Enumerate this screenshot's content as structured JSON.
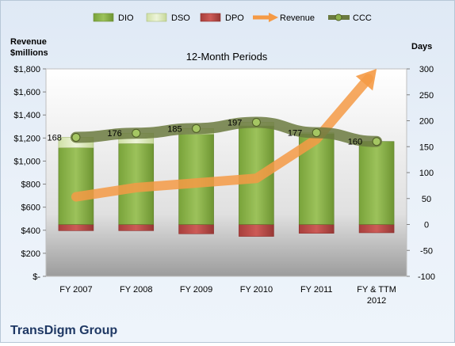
{
  "chart_data": {
    "type": "bar",
    "title": "12-Month Periods",
    "footer": "TransDigm Group",
    "categories": [
      "FY 2007",
      "FY 2008",
      "FY 2009",
      "FY 2010",
      "FY 2011",
      "FY & TTM 2012"
    ],
    "left_axis": {
      "label_line1": "Revenue",
      "label_line2": "$millions",
      "range": [
        0,
        1800
      ],
      "ticks": [
        "$-",
        "$200",
        "$400",
        "$600",
        "$800",
        "$1,000",
        "$1,200",
        "$1,400",
        "$1,600",
        "$1,800"
      ]
    },
    "right_axis": {
      "label": "Days",
      "range": [
        -100,
        300
      ],
      "ticks": [
        "-100",
        "-50",
        "0",
        "50",
        "100",
        "150",
        "200",
        "250",
        "300"
      ]
    },
    "series": [
      {
        "name": "DIO",
        "axis": "right",
        "kind": "stacked-bar",
        "values": [
          148,
          156,
          174,
          190,
          175,
          160
        ],
        "color": "#8db04a"
      },
      {
        "name": "DSO",
        "axis": "right",
        "kind": "stacked-bar",
        "values": [
          20,
          20,
          11,
          7,
          2,
          0
        ],
        "color": "#d7e4b3"
      },
      {
        "name": "DPO",
        "axis": "right",
        "kind": "negative-bar",
        "values": [
          -12,
          -12,
          -18,
          -23,
          -17,
          -16
        ],
        "color": "#c0504d"
      },
      {
        "name": "Revenue",
        "axis": "left",
        "kind": "arrow-line",
        "values": [
          690,
          770,
          810,
          850,
          1190,
          1800
        ],
        "color": "#f59a45"
      },
      {
        "name": "CCC",
        "axis": "right",
        "kind": "line-markers",
        "values": [
          168,
          176,
          185,
          197,
          177,
          160
        ],
        "labels": [
          "168",
          "176",
          "185",
          "197",
          "177",
          "160"
        ],
        "color": "#6b7a40"
      }
    ],
    "legend_position": "top",
    "grid": false
  }
}
